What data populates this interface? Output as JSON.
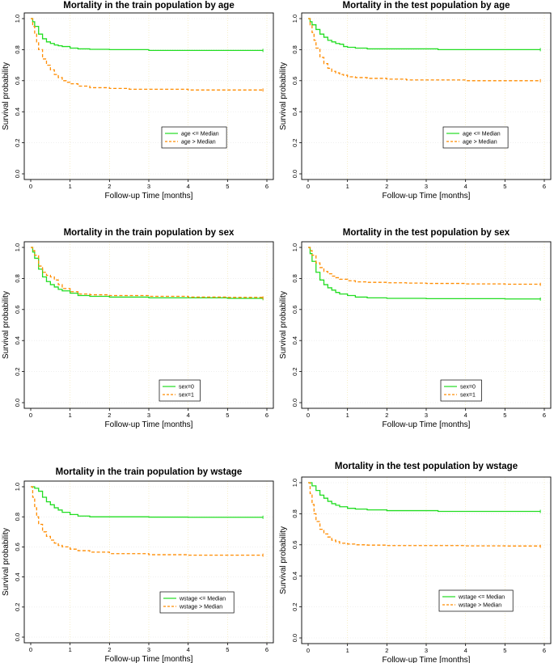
{
  "chart_data": [
    {
      "type": "line",
      "title": "Mortality in the train population by age",
      "xlabel": "Follow-up Time [months]",
      "ylabel": "Survival probability",
      "xlim": [
        0,
        6
      ],
      "ylim": [
        0,
        1
      ],
      "xticks": [
        "0",
        "1",
        "2",
        "3",
        "4",
        "5",
        "6"
      ],
      "yticks": [
        "0.0",
        "0.2",
        "0.4",
        "0.6",
        "0.8",
        "1.0"
      ],
      "legend_position": "center-right",
      "grid_colors": {
        "vertical": "#f0e4a8",
        "horizontal": "#e6e6e6"
      },
      "series": [
        {
          "name": "age <= Median",
          "color": "#22dd22",
          "style": "solid",
          "x": [
            0,
            0.05,
            0.1,
            0.2,
            0.3,
            0.4,
            0.5,
            0.6,
            0.7,
            0.8,
            1.0,
            1.2,
            1.5,
            2.0,
            3.0,
            4.0,
            5.0,
            5.9
          ],
          "y": [
            1,
            0.98,
            0.95,
            0.9,
            0.87,
            0.85,
            0.84,
            0.83,
            0.825,
            0.82,
            0.81,
            0.805,
            0.802,
            0.8,
            0.795,
            0.795,
            0.795,
            0.795
          ]
        },
        {
          "name": "age > Median",
          "color": "#ff8c00",
          "style": "dashed",
          "x": [
            0,
            0.05,
            0.1,
            0.15,
            0.2,
            0.3,
            0.4,
            0.5,
            0.6,
            0.7,
            0.8,
            0.9,
            1.0,
            1.2,
            1.5,
            2.0,
            2.5,
            3.0,
            4.0,
            5.0,
            5.9
          ],
          "y": [
            1,
            0.95,
            0.9,
            0.85,
            0.8,
            0.74,
            0.7,
            0.67,
            0.64,
            0.62,
            0.6,
            0.59,
            0.58,
            0.565,
            0.555,
            0.55,
            0.545,
            0.545,
            0.54,
            0.54,
            0.54
          ]
        }
      ]
    },
    {
      "type": "line",
      "title": "Mortality in the test population by age",
      "xlabel": "Follow-up Time [months]",
      "ylabel": "Survival probability",
      "xlim": [
        0,
        6
      ],
      "ylim": [
        0,
        1
      ],
      "xticks": [
        "0",
        "1",
        "2",
        "3",
        "4",
        "5",
        "6"
      ],
      "yticks": [
        "0.0",
        "0.2",
        "0.4",
        "0.6",
        "0.8",
        "1.0"
      ],
      "legend_position": "center-right",
      "grid_colors": {
        "vertical": "#f0e4a8",
        "horizontal": "#e6e6e6"
      },
      "series": [
        {
          "name": "age <= Median",
          "color": "#22dd22",
          "style": "solid",
          "x": [
            0,
            0.05,
            0.1,
            0.2,
            0.3,
            0.4,
            0.5,
            0.6,
            0.7,
            0.8,
            0.9,
            1.0,
            1.2,
            1.5,
            2.0,
            3.0,
            3.3,
            4.0,
            5.0,
            5.9
          ],
          "y": [
            1,
            0.98,
            0.96,
            0.93,
            0.9,
            0.88,
            0.86,
            0.85,
            0.84,
            0.835,
            0.82,
            0.815,
            0.81,
            0.805,
            0.805,
            0.805,
            0.8,
            0.8,
            0.8,
            0.8
          ]
        },
        {
          "name": "age > Median",
          "color": "#ff8c00",
          "style": "dashed",
          "x": [
            0,
            0.05,
            0.1,
            0.15,
            0.2,
            0.3,
            0.4,
            0.5,
            0.6,
            0.7,
            0.8,
            0.9,
            1.0,
            1.2,
            1.5,
            2.0,
            2.5,
            3.0,
            4.0,
            5.0,
            5.9
          ],
          "y": [
            1,
            0.96,
            0.91,
            0.86,
            0.81,
            0.75,
            0.71,
            0.68,
            0.66,
            0.65,
            0.64,
            0.635,
            0.625,
            0.62,
            0.615,
            0.61,
            0.605,
            0.605,
            0.6,
            0.6,
            0.6
          ]
        }
      ]
    },
    {
      "type": "line",
      "title": "Mortality in the train population by sex",
      "xlabel": "Follow-up Time [months]",
      "ylabel": "Survival probability",
      "xlim": [
        0,
        6
      ],
      "ylim": [
        0,
        1
      ],
      "xticks": [
        "0",
        "1",
        "2",
        "3",
        "4",
        "5",
        "6"
      ],
      "yticks": [
        "0.0",
        "0.2",
        "0.4",
        "0.6",
        "0.8",
        "1.0"
      ],
      "legend_position": "center-right",
      "grid_colors": {
        "vertical": "#f0e4a8",
        "horizontal": "#e6e6e6"
      },
      "series": [
        {
          "name": "sex=0",
          "color": "#22dd22",
          "style": "solid",
          "x": [
            0,
            0.05,
            0.1,
            0.2,
            0.3,
            0.4,
            0.5,
            0.6,
            0.7,
            0.8,
            1.0,
            1.2,
            1.5,
            2.0,
            3.0,
            4.0,
            5.0,
            5.9
          ],
          "y": [
            1,
            0.97,
            0.93,
            0.86,
            0.81,
            0.78,
            0.76,
            0.745,
            0.73,
            0.72,
            0.705,
            0.69,
            0.685,
            0.68,
            0.675,
            0.675,
            0.672,
            0.67
          ]
        },
        {
          "name": "sex=1",
          "color": "#ff8c00",
          "style": "dashed",
          "x": [
            0,
            0.05,
            0.1,
            0.2,
            0.3,
            0.4,
            0.5,
            0.6,
            0.7,
            0.8,
            1.0,
            1.2,
            1.5,
            2.0,
            3.0,
            4.0,
            5.0,
            5.9
          ],
          "y": [
            1,
            0.98,
            0.95,
            0.88,
            0.84,
            0.82,
            0.81,
            0.79,
            0.76,
            0.735,
            0.715,
            0.7,
            0.695,
            0.69,
            0.685,
            0.68,
            0.678,
            0.675
          ]
        }
      ]
    },
    {
      "type": "line",
      "title": "Mortality in the test population by sex",
      "xlabel": "Follow-up Time [months]",
      "ylabel": "Survival probability",
      "xlim": [
        0,
        6
      ],
      "ylim": [
        0,
        1
      ],
      "xticks": [
        "0",
        "1",
        "2",
        "3",
        "4",
        "5",
        "6"
      ],
      "yticks": [
        "0.0",
        "0.2",
        "0.4",
        "0.6",
        "0.8",
        "1.0"
      ],
      "legend_position": "center-right",
      "grid_colors": {
        "vertical": "#f0e4a8",
        "horizontal": "#e6e6e6"
      },
      "series": [
        {
          "name": "sex=0",
          "color": "#22dd22",
          "style": "solid",
          "x": [
            0,
            0.05,
            0.1,
            0.2,
            0.3,
            0.4,
            0.5,
            0.6,
            0.7,
            0.8,
            1.0,
            1.2,
            1.5,
            2.0,
            3.0,
            4.0,
            5.0,
            5.9
          ],
          "y": [
            1,
            0.96,
            0.91,
            0.84,
            0.79,
            0.76,
            0.74,
            0.725,
            0.71,
            0.7,
            0.69,
            0.68,
            0.675,
            0.672,
            0.67,
            0.67,
            0.668,
            0.667
          ]
        },
        {
          "name": "sex=1",
          "color": "#ff8c00",
          "style": "dashed",
          "x": [
            0,
            0.05,
            0.1,
            0.2,
            0.3,
            0.4,
            0.5,
            0.6,
            0.7,
            0.8,
            1.0,
            1.2,
            1.5,
            2.0,
            2.5,
            3.0,
            4.0,
            5.0,
            5.9
          ],
          "y": [
            1,
            0.98,
            0.95,
            0.9,
            0.87,
            0.845,
            0.83,
            0.815,
            0.805,
            0.795,
            0.785,
            0.778,
            0.775,
            0.772,
            0.77,
            0.768,
            0.765,
            0.763,
            0.762
          ]
        }
      ]
    },
    {
      "type": "line",
      "title": "Mortality in the train population by wstage",
      "xlabel": "Follow-up Time [months]",
      "ylabel": "Survival probability",
      "xlim": [
        0,
        6
      ],
      "ylim": [
        0,
        1
      ],
      "xticks": [
        "0",
        "1",
        "2",
        "3",
        "4",
        "5",
        "6"
      ],
      "yticks": [
        "0.0",
        "0.2",
        "0.4",
        "0.6",
        "0.8",
        "1.0"
      ],
      "legend_position": "bottom-right",
      "grid_colors": {
        "vertical": "#f0e4a8",
        "horizontal": "#e6e6e6"
      },
      "series": [
        {
          "name": "wstage <= Median",
          "color": "#22dd22",
          "style": "solid",
          "x": [
            0,
            0.1,
            0.2,
            0.3,
            0.4,
            0.5,
            0.6,
            0.7,
            0.8,
            1.0,
            1.2,
            1.5,
            2.0,
            3.0,
            4.0,
            5.0,
            5.9
          ],
          "y": [
            1,
            0.99,
            0.97,
            0.93,
            0.9,
            0.88,
            0.86,
            0.845,
            0.83,
            0.815,
            0.805,
            0.8,
            0.8,
            0.798,
            0.797,
            0.797,
            0.797
          ]
        },
        {
          "name": "wstage > Median",
          "color": "#ff8c00",
          "style": "dashed",
          "x": [
            0,
            0.05,
            0.1,
            0.15,
            0.2,
            0.3,
            0.4,
            0.5,
            0.6,
            0.7,
            0.8,
            1.0,
            1.2,
            1.5,
            2.0,
            3.0,
            4.0,
            5.0,
            5.9
          ],
          "y": [
            1,
            0.93,
            0.86,
            0.8,
            0.75,
            0.7,
            0.67,
            0.645,
            0.625,
            0.61,
            0.6,
            0.585,
            0.575,
            0.565,
            0.555,
            0.548,
            0.545,
            0.545,
            0.545
          ]
        }
      ]
    },
    {
      "type": "line",
      "title": "Mortality in the test population by wstage",
      "xlabel": "Follow-up Time [months]",
      "ylabel": "Survival probability",
      "xlim": [
        0,
        6
      ],
      "ylim": [
        0,
        1
      ],
      "xticks": [
        "0",
        "1",
        "2",
        "3",
        "4",
        "5",
        "6"
      ],
      "yticks": [
        "0.0",
        "0.2",
        "0.4",
        "0.6",
        "0.8",
        "1.0"
      ],
      "legend_position": "bottom-right",
      "grid_colors": {
        "vertical": "#f0e4a8",
        "horizontal": "#e6e6e6"
      },
      "series": [
        {
          "name": "wstage <= Median",
          "color": "#22dd22",
          "style": "solid",
          "x": [
            0,
            0.1,
            0.2,
            0.3,
            0.4,
            0.5,
            0.6,
            0.7,
            0.8,
            1.0,
            1.2,
            1.5,
            2.0,
            3.0,
            3.3,
            4.0,
            5.0,
            5.9
          ],
          "y": [
            1,
            0.98,
            0.95,
            0.92,
            0.9,
            0.88,
            0.865,
            0.855,
            0.845,
            0.835,
            0.83,
            0.825,
            0.82,
            0.82,
            0.815,
            0.815,
            0.815,
            0.815
          ]
        },
        {
          "name": "wstage > Median",
          "color": "#ff8c00",
          "style": "dashed",
          "x": [
            0,
            0.05,
            0.1,
            0.15,
            0.2,
            0.3,
            0.4,
            0.5,
            0.6,
            0.7,
            0.8,
            1.0,
            1.2,
            1.5,
            2.0,
            3.0,
            4.0,
            5.0,
            5.9
          ],
          "y": [
            1,
            0.93,
            0.86,
            0.8,
            0.75,
            0.7,
            0.67,
            0.65,
            0.63,
            0.62,
            0.61,
            0.605,
            0.6,
            0.598,
            0.595,
            0.595,
            0.593,
            0.592,
            0.59
          ]
        }
      ]
    }
  ]
}
